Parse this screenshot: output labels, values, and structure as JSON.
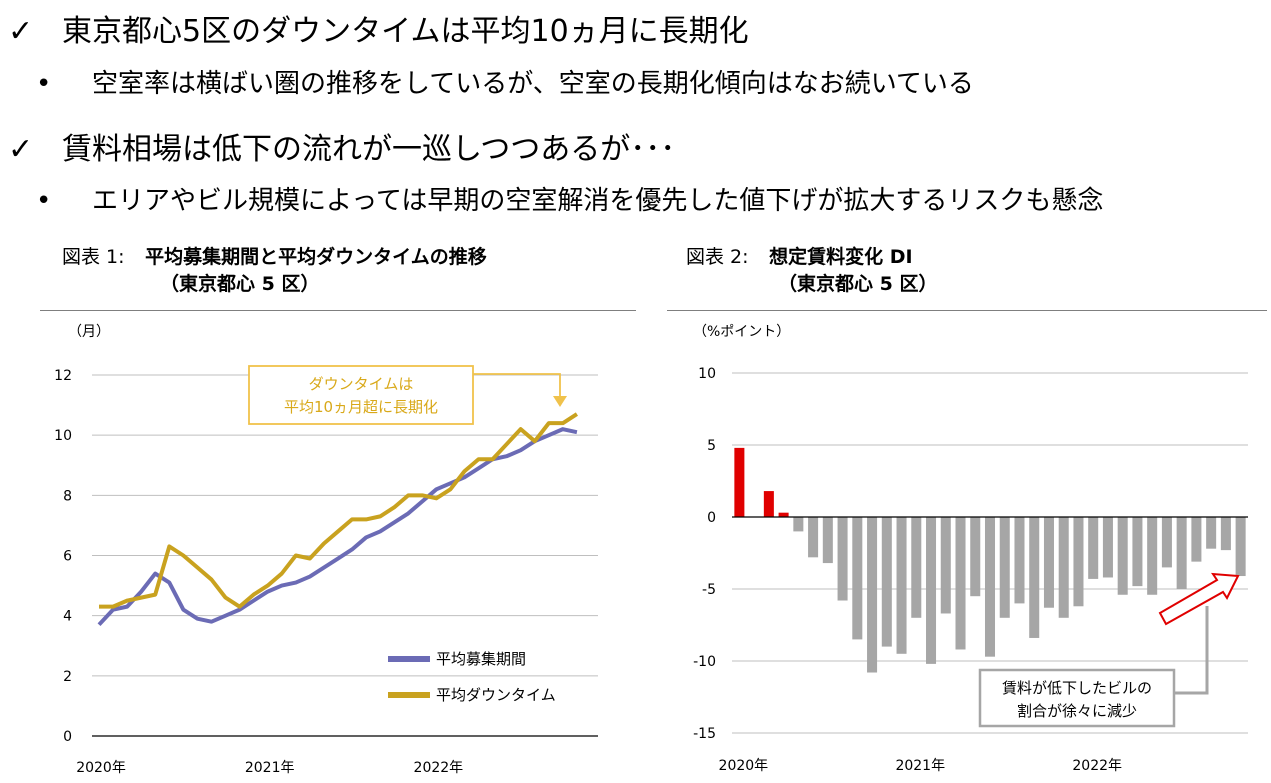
{
  "bullets": [
    {
      "mark": "✓",
      "text": "東京都心5区のダウンタイムは平均10ヵ月に長期化",
      "level": 1
    },
    {
      "mark": "•",
      "text": "空室率は横ばい圏の推移をしているが、空室の長期化傾向はなお続いている",
      "level": 2
    },
    {
      "mark": "✓",
      "text": "賃料相場は低下の流れが一巡しつつあるが･･･",
      "level": 1
    },
    {
      "mark": "•",
      "text": "エリアやビル規模によっては早期の空室解消を優先した値下げが拡大するリスクも懸念",
      "level": 2
    }
  ],
  "chart_data": [
    {
      "type": "line",
      "figure_label": "図表 1:",
      "title": "平均募集期間と平均ダウンタイムの推移",
      "subtitle": "（東京都心 5 区）",
      "ylabel": "（月）",
      "ylim": [
        0,
        12
      ],
      "yticks": [
        "0",
        "2",
        "4",
        "6",
        "8",
        "10",
        "12"
      ],
      "xticks": [
        "2020年",
        "2021年",
        "2022年"
      ],
      "x_start": "2020-01",
      "grid": true,
      "legend_position": "bottom-right",
      "annotation": {
        "line1": "ダウンタイムは",
        "line2": "平均10ヵ月超に長期化",
        "color": "#f0c24b"
      },
      "series": [
        {
          "name": "平均募集期間",
          "color": "#6b6bb5",
          "values": [
            3.7,
            4.2,
            4.3,
            4.8,
            5.4,
            5.1,
            4.2,
            3.9,
            3.8,
            4.0,
            4.2,
            4.5,
            4.8,
            5.0,
            5.1,
            5.3,
            5.6,
            5.9,
            6.2,
            6.6,
            6.8,
            7.1,
            7.4,
            7.8,
            8.2,
            8.4,
            8.6,
            8.9,
            9.2,
            9.3,
            9.5,
            9.8,
            10.0,
            10.2,
            10.1
          ]
        },
        {
          "name": "平均ダウンタイム",
          "color": "#c9a21f",
          "values": [
            4.3,
            4.3,
            4.5,
            4.6,
            4.7,
            6.3,
            6.0,
            5.6,
            5.2,
            4.6,
            4.3,
            4.7,
            5.0,
            5.4,
            6.0,
            5.9,
            6.4,
            6.8,
            7.2,
            7.2,
            7.3,
            7.6,
            8.0,
            8.0,
            7.9,
            8.2,
            8.8,
            9.2,
            9.2,
            9.7,
            10.2,
            9.8,
            10.4,
            10.4,
            10.7
          ]
        }
      ]
    },
    {
      "type": "bar",
      "figure_label": "図表 2:",
      "title": "想定賃料変化 DI",
      "subtitle": "（東京都心 5 区）",
      "ylabel": "（%ポイント）",
      "ylim": [
        -15,
        10
      ],
      "yticks": [
        "10",
        "5",
        "0",
        "-5",
        "-10",
        "-15"
      ],
      "xticks": [
        "2020年",
        "2021年",
        "2022年"
      ],
      "x_start": "2020-01",
      "grid": true,
      "annotation": {
        "line1": "賃料が低下したビルの",
        "line2": "割合が徐々に減少"
      },
      "positive_color": "#e00000",
      "negative_color": "#a6a6a6",
      "values": [
        4.8,
        0,
        1.8,
        0.3,
        -1.0,
        -2.8,
        -3.2,
        -5.8,
        -8.5,
        -10.8,
        -9.0,
        -9.5,
        -7.0,
        -10.2,
        -6.7,
        -9.2,
        -5.5,
        -9.7,
        -7.0,
        -6.0,
        -8.4,
        -6.3,
        -7.0,
        -6.2,
        -4.3,
        -4.2,
        -5.4,
        -4.8,
        -5.4,
        -3.5,
        -5.0,
        -3.1,
        -2.2,
        -2.3,
        -4.1
      ]
    }
  ]
}
